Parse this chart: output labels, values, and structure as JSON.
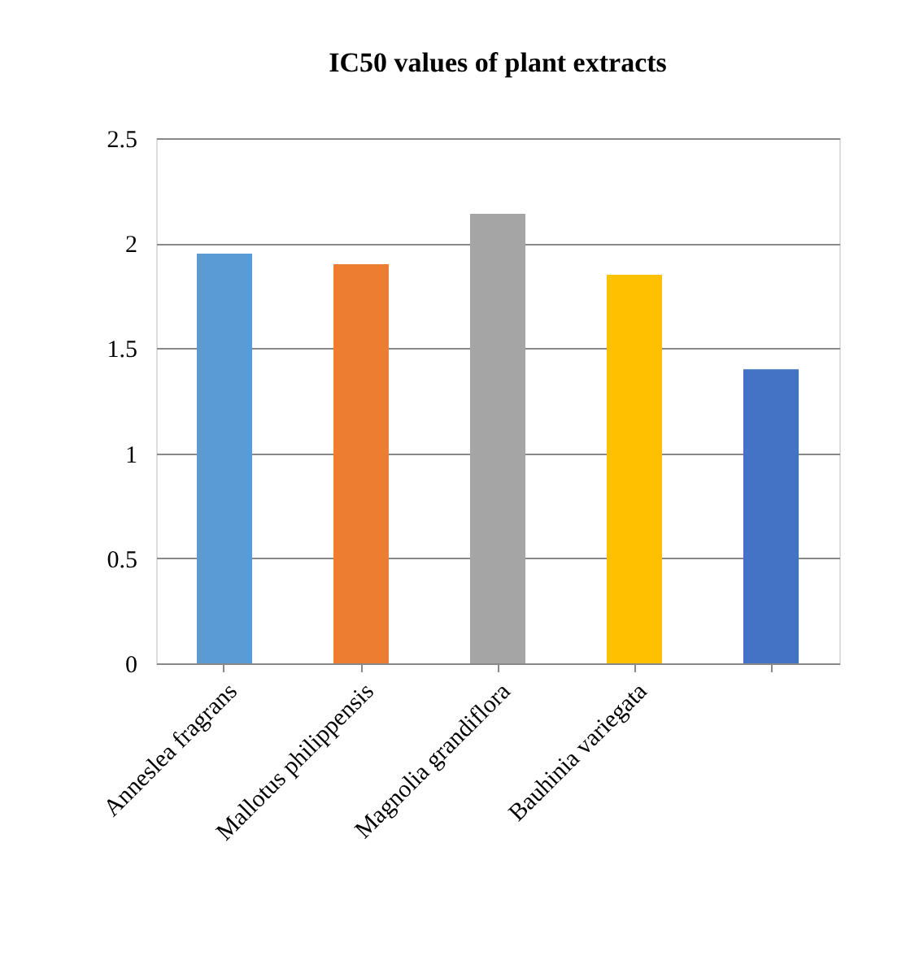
{
  "chart_data": {
    "type": "bar",
    "title": "IC50  values of plant extracts",
    "categories": [
      "Anneslea fragrans",
      "Mallotus philippensis",
      "Magnolia grandiflora",
      "Bauhinia variegata",
      null
    ],
    "values": [
      1.95,
      1.9,
      2.14,
      1.85,
      1.4
    ],
    "colors": [
      "#5b9bd5",
      "#ed7d31",
      "#a5a5a5",
      "#ffc000",
      "#4472c4"
    ],
    "ylim": [
      0,
      2.5
    ],
    "yticks": [
      0,
      0.5,
      1,
      1.5,
      2,
      2.5
    ],
    "grid": "y",
    "legend": false
  }
}
